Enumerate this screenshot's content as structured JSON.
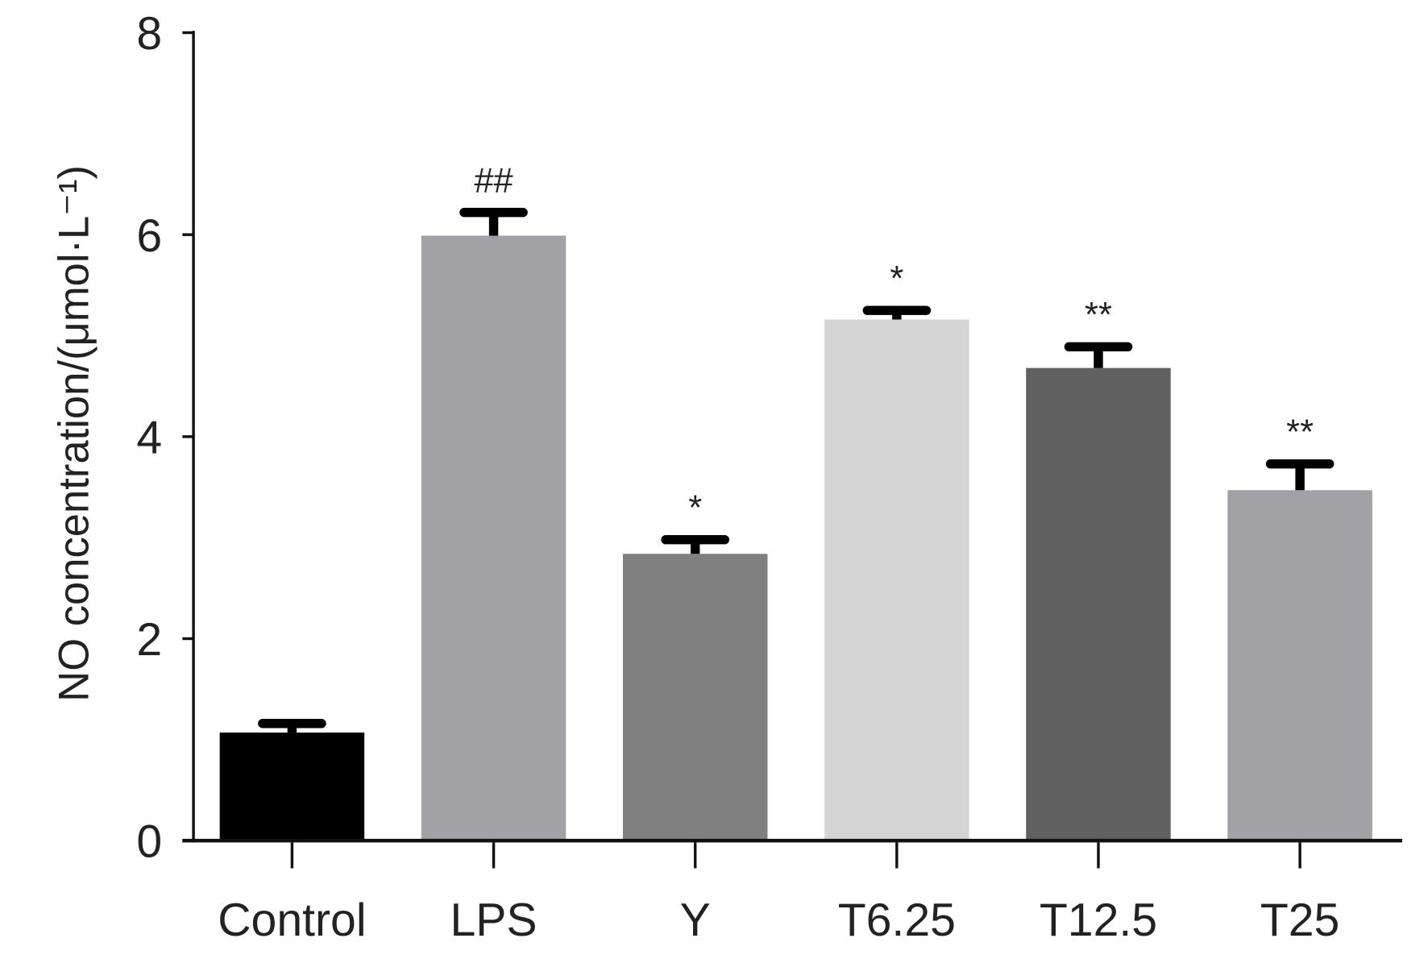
{
  "chart_data": {
    "type": "bar",
    "title": "",
    "xlabel": "",
    "ylabel": "NO concentration/(μmol·L⁻¹)",
    "ylim": [
      0,
      8
    ],
    "yticks": [
      "0",
      "2",
      "4",
      "6",
      "8"
    ],
    "grid": false,
    "categories": [
      "Control",
      "LPS",
      "Y",
      "T6.25",
      "T12.5",
      "T25"
    ],
    "values": [
      1.07,
      5.99,
      2.84,
      5.16,
      4.68,
      3.47
    ],
    "error_upper": [
      1.16,
      6.22,
      2.98,
      5.25,
      4.89,
      3.73
    ],
    "annotations": [
      "",
      "##",
      "*",
      "*",
      "**",
      "**"
    ],
    "colors": [
      "#000000",
      "#a2a2a6",
      "#808080",
      "#d4d4d4",
      "#606060",
      "#a2a2a6"
    ]
  }
}
